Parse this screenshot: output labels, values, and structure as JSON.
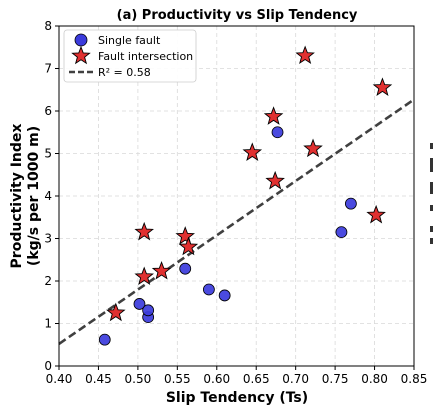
{
  "chart_data": {
    "type": "scatter",
    "title": "(a) Productivity vs Slip Tendency",
    "xlabel": "Slip Tendency (Ts)",
    "ylabel_line1": "Productivity Index",
    "ylabel_line2": "(kg/s per 1000 m)",
    "xlim": [
      0.4,
      0.85
    ],
    "ylim": [
      0,
      8
    ],
    "xticks": [
      "0.40",
      "0.45",
      "0.50",
      "0.55",
      "0.60",
      "0.65",
      "0.70",
      "0.75",
      "0.80",
      "0.85"
    ],
    "yticks": [
      "0",
      "1",
      "2",
      "3",
      "4",
      "5",
      "6",
      "7",
      "8"
    ],
    "grid": true,
    "legend_position": "top-left",
    "series": [
      {
        "name": "Single fault",
        "marker": "circle",
        "color": "#3b3bdc",
        "points": [
          [
            0.458,
            0.62
          ],
          [
            0.502,
            1.46
          ],
          [
            0.513,
            1.15
          ],
          [
            0.513,
            1.31
          ],
          [
            0.56,
            2.29
          ],
          [
            0.59,
            1.8
          ],
          [
            0.61,
            1.66
          ],
          [
            0.677,
            5.5
          ],
          [
            0.758,
            3.15
          ],
          [
            0.77,
            3.82
          ]
        ]
      },
      {
        "name": "Fault intersection",
        "marker": "star",
        "color": "#e03030",
        "points": [
          [
            0.472,
            1.25
          ],
          [
            0.508,
            2.1
          ],
          [
            0.508,
            3.15
          ],
          [
            0.53,
            2.23
          ],
          [
            0.56,
            3.05
          ],
          [
            0.564,
            2.8
          ],
          [
            0.645,
            5.02
          ],
          [
            0.672,
            5.87
          ],
          [
            0.674,
            4.35
          ],
          [
            0.712,
            7.3
          ],
          [
            0.722,
            5.11
          ],
          [
            0.802,
            3.55
          ],
          [
            0.81,
            6.55
          ]
        ]
      }
    ],
    "fit": {
      "label": "R² = 0.58",
      "x": [
        0.4,
        0.85
      ],
      "y": [
        0.52,
        6.27
      ],
      "color": "#404040"
    }
  }
}
